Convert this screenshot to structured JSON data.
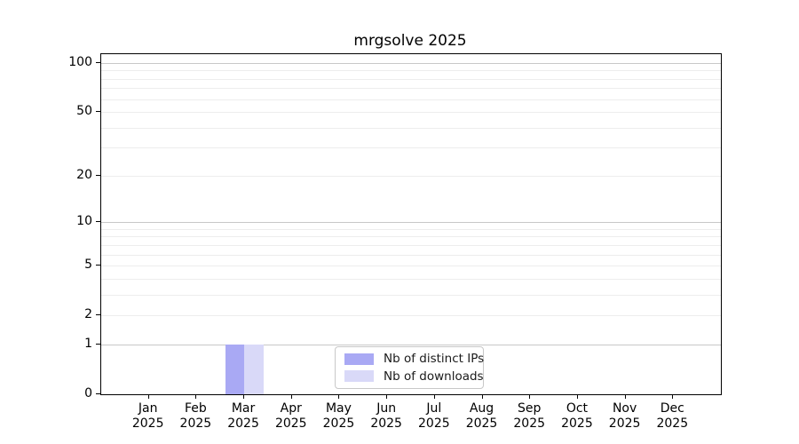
{
  "figure": {
    "title": "mrgsolve 2025",
    "background": "#ffffff"
  },
  "chart_data": {
    "type": "bar",
    "title": "mrgsolve 2025",
    "categories": [
      "Jan 2025",
      "Feb 2025",
      "Mar 2025",
      "Apr 2025",
      "May 2025",
      "Jun 2025",
      "Jul 2025",
      "Aug 2025",
      "Sep 2025",
      "Oct 2025",
      "Nov 2025",
      "Dec 2025"
    ],
    "x_tick_months": [
      "Jan",
      "Feb",
      "Mar",
      "Apr",
      "May",
      "Jun",
      "Jul",
      "Aug",
      "Sep",
      "Oct",
      "Nov",
      "Dec"
    ],
    "x_tick_year": "2025",
    "series": [
      {
        "name": "Nb of distinct IPs",
        "color": "#a9a9f4",
        "values": [
          0,
          0,
          1,
          0,
          0,
          0,
          0,
          0,
          0,
          0,
          0,
          0
        ]
      },
      {
        "name": "Nb of downloads",
        "color": "#d9d9f8",
        "values": [
          0,
          0,
          1,
          0,
          0,
          0,
          0,
          0,
          0,
          0,
          0,
          0
        ]
      }
    ],
    "xlabel": "",
    "ylabel": "",
    "ylim": [
      0,
      100
    ],
    "y_scale": "log1p",
    "y_ticks": [
      0,
      1,
      2,
      5,
      10,
      20,
      50,
      100
    ],
    "y_major_grid": [
      1,
      10,
      100
    ],
    "y_minor_grid": [
      2,
      3,
      4,
      5,
      6,
      7,
      8,
      9,
      20,
      30,
      40,
      50,
      60,
      70,
      80,
      90
    ],
    "grid": "horizontal",
    "legend_position": "bottom-center"
  },
  "legend": {
    "items": [
      {
        "label": "Nb of distinct IPs",
        "color": "#a9a9f4"
      },
      {
        "label": "Nb of downloads",
        "color": "#d9d9f8"
      }
    ]
  },
  "colors": {
    "axis": "#000000",
    "text": "#000000",
    "grid_major": "#c8c8c8",
    "grid_minor": "#ededed",
    "legend_border": "#c8c8c8",
    "background": "#ffffff"
  }
}
